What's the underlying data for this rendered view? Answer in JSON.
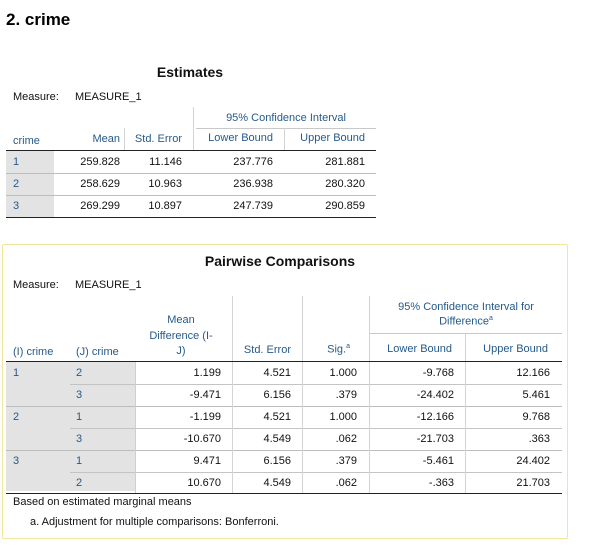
{
  "section_title": "2. crime",
  "estimates": {
    "title": "Estimates",
    "measure_label": "Measure:",
    "measure_value": "MEASURE_1",
    "ci_header": "95% Confidence Interval",
    "columns": [
      "crime",
      "Mean",
      "Std. Error",
      "Lower Bound",
      "Upper Bound"
    ],
    "rows": [
      {
        "crime": "1",
        "mean": "259.828",
        "se": "11.146",
        "lower": "237.776",
        "upper": "281.881"
      },
      {
        "crime": "2",
        "mean": "258.629",
        "se": "10.963",
        "lower": "236.938",
        "upper": "280.320"
      },
      {
        "crime": "3",
        "mean": "269.299",
        "se": "10.897",
        "lower": "247.739",
        "upper": "290.859"
      }
    ]
  },
  "pairwise": {
    "title": "Pairwise Comparisons",
    "measure_label": "Measure:",
    "measure_value": "MEASURE_1",
    "ci_header_line1": "95% Confidence Interval for",
    "ci_header_line2": "Difference",
    "ci_header_sup": "a",
    "col_i": "(I) crime",
    "col_j": "(J) crime",
    "col_md_line1": "Mean",
    "col_md_line2": "Difference (I-",
    "col_md_line3": "J)",
    "col_se": "Std. Error",
    "col_sig": "Sig.",
    "col_sig_sup": "a",
    "col_lower": "Lower Bound",
    "col_upper": "Upper Bound",
    "groups": [
      {
        "i": "1",
        "rows": [
          {
            "j": "2",
            "md": "1.199",
            "se": "4.521",
            "sig": "1.000",
            "lower": "-9.768",
            "upper": "12.166"
          },
          {
            "j": "3",
            "md": "-9.471",
            "se": "6.156",
            "sig": ".379",
            "lower": "-24.402",
            "upper": "5.461"
          }
        ]
      },
      {
        "i": "2",
        "rows": [
          {
            "j": "1",
            "md": "-1.199",
            "se": "4.521",
            "sig": "1.000",
            "lower": "-12.166",
            "upper": "9.768"
          },
          {
            "j": "3",
            "md": "-10.670",
            "se": "4.549",
            "sig": ".062",
            "lower": "-21.703",
            "upper": ".363"
          }
        ]
      },
      {
        "i": "3",
        "rows": [
          {
            "j": "1",
            "md": "9.471",
            "se": "6.156",
            "sig": ".379",
            "lower": "-5.461",
            "upper": "24.402"
          },
          {
            "j": "2",
            "md": "10.670",
            "se": "4.549",
            "sig": ".062",
            "lower": "-.363",
            "upper": "21.703"
          }
        ]
      }
    ],
    "footnote1": "Based on estimated marginal means",
    "footnote2": "a. Adjustment for multiple comparisons: Bonferroni."
  }
}
